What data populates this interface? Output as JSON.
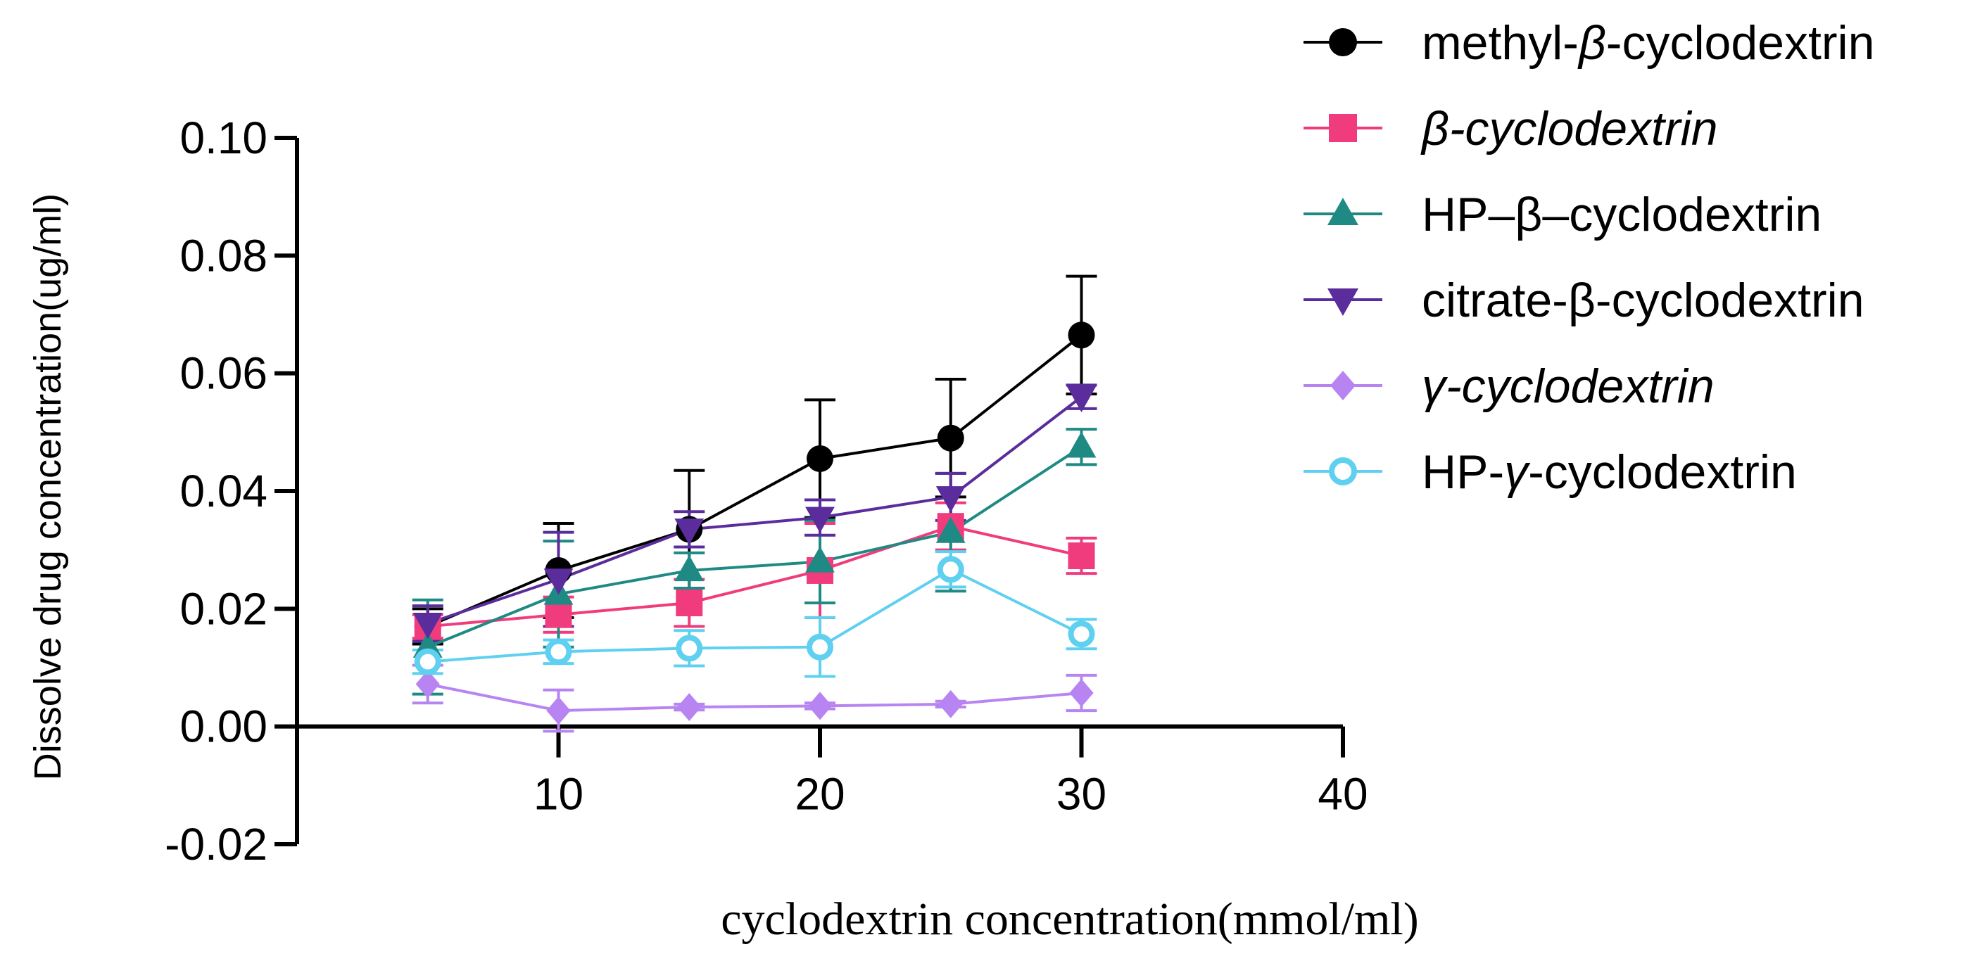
{
  "chart_data": {
    "type": "line",
    "title": "",
    "xlabel": "cyclodextrin concentration(mmol/ml)",
    "ylabel": "Dissolve drug concentration(ug/ml)",
    "xlim": [
      0,
      40
    ],
    "ylim": [
      -0.02,
      0.1
    ],
    "x_ticks": [
      10,
      20,
      30,
      40
    ],
    "x_tick_labels": [
      "10",
      "20",
      "30",
      "40"
    ],
    "y_ticks": [
      -0.02,
      0.0,
      0.02,
      0.04,
      0.06,
      0.08,
      0.1
    ],
    "y_tick_labels": [
      "-0.02",
      "0.00",
      "0.02",
      "0.04",
      "0.06",
      "0.08",
      "0.10"
    ],
    "grid": false,
    "legend_position": "top-right",
    "x": [
      5,
      10,
      15,
      20,
      25,
      30
    ],
    "series": [
      {
        "name": "methyl-β-cyclodextrin",
        "legend_parts": [
          {
            "text": "methyl-",
            "italic": false
          },
          {
            "text": "β",
            "italic": true
          },
          {
            "text": "-cyclodextrin",
            "italic": false
          }
        ],
        "color": "#000000",
        "marker": "circle",
        "values": [
          0.017,
          0.0265,
          0.0335,
          0.0455,
          0.049,
          0.0665
        ],
        "errors": [
          0.003,
          0.008,
          0.01,
          0.01,
          0.01,
          0.01
        ]
      },
      {
        "name": "β-cyclodextrin",
        "legend_parts": [
          {
            "text": "β-cyclodextrin",
            "italic": true
          }
        ],
        "color": "#f03c7c",
        "marker": "square",
        "values": [
          0.017,
          0.019,
          0.021,
          0.0265,
          0.034,
          0.029
        ],
        "errors": [
          0.002,
          0.003,
          0.004,
          0.008,
          0.004,
          0.003
        ]
      },
      {
        "name": "HP–β–cyclodextrin",
        "legend_parts": [
          {
            "text": "HP–β–cyclodextrin",
            "italic": false
          }
        ],
        "color": "#1f8a84",
        "marker": "triangle-up",
        "values": [
          0.0135,
          0.0225,
          0.0265,
          0.028,
          0.033,
          0.0475
        ],
        "errors": [
          0.008,
          0.009,
          0.003,
          0.007,
          0.01,
          0.003
        ]
      },
      {
        "name": "citrate-β-cyclodextrin",
        "legend_parts": [
          {
            "text": "citrate-β-cyclodextrin",
            "italic": false
          }
        ],
        "color": "#5a2c9c",
        "marker": "triangle-down",
        "values": [
          0.0175,
          0.025,
          0.0335,
          0.0355,
          0.039,
          0.056
        ],
        "errors": [
          0.003,
          0.008,
          0.003,
          0.003,
          0.004,
          0.002
        ]
      },
      {
        "name": "γ-cyclodextrin",
        "legend_parts": [
          {
            "text": "γ-cyclodextrin",
            "italic": true
          }
        ],
        "color": "#b784f2",
        "marker": "diamond",
        "values": [
          0.0072,
          0.0027,
          0.0033,
          0.0035,
          0.0038,
          0.0057
        ],
        "errors": [
          0.0032,
          0.0035,
          0.0005,
          0.0005,
          0.0005,
          0.003
        ]
      },
      {
        "name": "HP-γ-cyclodextrin",
        "legend_parts": [
          {
            "text": "HP-",
            "italic": false
          },
          {
            "text": "γ",
            "italic": true
          },
          {
            "text": "-cyclodextrin",
            "italic": false
          }
        ],
        "color": "#5fd0f0",
        "marker": "open-circle",
        "values": [
          0.011,
          0.0127,
          0.0133,
          0.0135,
          0.0267,
          0.0157
        ],
        "errors": [
          0.002,
          0.002,
          0.003,
          0.005,
          0.003,
          0.0025
        ]
      }
    ]
  }
}
